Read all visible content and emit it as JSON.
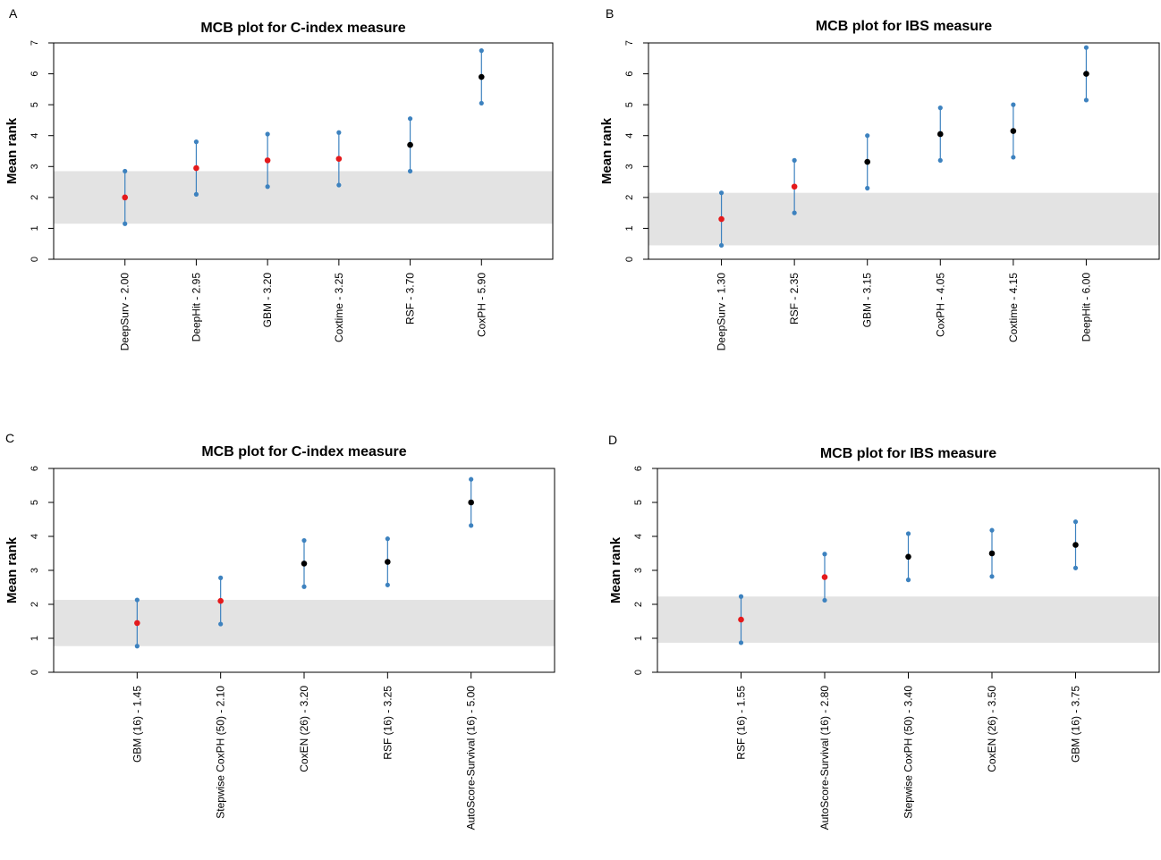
{
  "colors": {
    "band": "#e3e3e3",
    "interval": "#3d82bf",
    "mean_significant": "#e41a1c",
    "mean_other": "#000000"
  },
  "chart_data": [
    {
      "panel": "A",
      "type": "scatter",
      "title": "MCB plot for C-index measure",
      "ylabel": "Mean rank",
      "ylim": [
        0,
        7
      ],
      "yticks": [
        "0",
        "1",
        "2",
        "3",
        "4",
        "5",
        "6",
        "7"
      ],
      "band": [
        1.15,
        2.85
      ],
      "categories": [
        "DeepSurv - 2.00",
        "DeepHit - 2.95",
        "GBM - 3.20",
        "Coxtime - 3.25",
        "RSF - 3.70",
        "CoxPH - 5.90"
      ],
      "mean": [
        2.0,
        2.95,
        3.2,
        3.25,
        3.7,
        5.9
      ],
      "lower": [
        1.15,
        2.1,
        2.35,
        2.4,
        2.85,
        5.05
      ],
      "upper": [
        2.85,
        3.8,
        4.05,
        4.1,
        4.55,
        6.75
      ],
      "significant": [
        true,
        true,
        true,
        true,
        false,
        false
      ]
    },
    {
      "panel": "B",
      "type": "scatter",
      "title": "MCB plot for IBS measure",
      "ylabel": "Mean rank",
      "ylim": [
        0,
        7
      ],
      "yticks": [
        "0",
        "1",
        "2",
        "3",
        "4",
        "5",
        "6",
        "7"
      ],
      "band": [
        0.45,
        2.15
      ],
      "categories": [
        "DeepSurv - 1.30",
        "RSF - 2.35",
        "GBM - 3.15",
        "CoxPH - 4.05",
        "Coxtime - 4.15",
        "DeepHit - 6.00"
      ],
      "mean": [
        1.3,
        2.35,
        3.15,
        4.05,
        4.15,
        6.0
      ],
      "lower": [
        0.45,
        1.5,
        2.3,
        3.2,
        3.3,
        5.15
      ],
      "upper": [
        2.15,
        3.2,
        4.0,
        4.9,
        5.0,
        6.85
      ],
      "significant": [
        true,
        true,
        false,
        false,
        false,
        false
      ]
    },
    {
      "panel": "C",
      "type": "scatter",
      "title": "MCB plot for C-index measure",
      "ylabel": "Mean rank",
      "ylim": [
        0,
        6
      ],
      "yticks": [
        "0",
        "1",
        "2",
        "3",
        "4",
        "5",
        "6"
      ],
      "band": [
        0.77,
        2.13
      ],
      "categories": [
        "GBM (16) - 1.45",
        "Stepwise CoxPH (50) - 2.10",
        "CoxEN (26) - 3.20",
        "RSF (16) - 3.25",
        "AutoScore-Survival (16) - 5.00"
      ],
      "mean": [
        1.45,
        2.1,
        3.2,
        3.25,
        5.0
      ],
      "lower": [
        0.77,
        1.42,
        2.52,
        2.57,
        4.32
      ],
      "upper": [
        2.13,
        2.78,
        3.88,
        3.93,
        5.68
      ],
      "significant": [
        true,
        true,
        false,
        false,
        false
      ]
    },
    {
      "panel": "D",
      "type": "scatter",
      "title": "MCB plot for IBS measure",
      "ylabel": "Mean rank",
      "ylim": [
        0,
        6
      ],
      "yticks": [
        "0",
        "1",
        "2",
        "3",
        "4",
        "5",
        "6"
      ],
      "band": [
        0.87,
        2.23
      ],
      "categories": [
        "RSF (16) - 1.55",
        "AutoScore-Survival (16) - 2.80",
        "Stepwise CoxPH (50) - 3.40",
        "CoxEN (26) - 3.50",
        "GBM (16) - 3.75"
      ],
      "mean": [
        1.55,
        2.8,
        3.4,
        3.5,
        3.75
      ],
      "lower": [
        0.87,
        2.12,
        2.72,
        2.82,
        3.07
      ],
      "upper": [
        2.23,
        3.48,
        4.08,
        4.18,
        4.43
      ],
      "significant": [
        true,
        true,
        false,
        false,
        false
      ]
    }
  ]
}
